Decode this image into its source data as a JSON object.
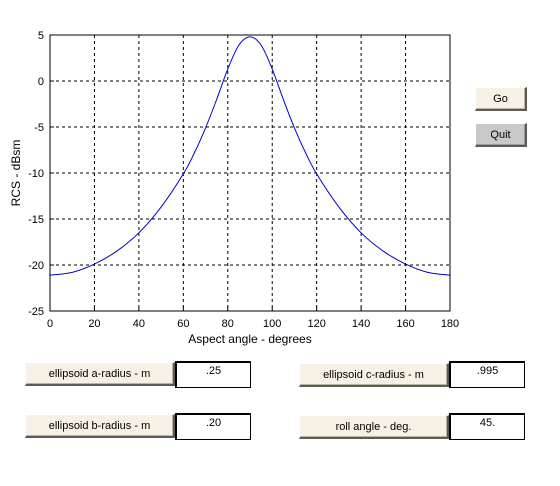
{
  "buttons": {
    "go": "Go",
    "quit": "Quit"
  },
  "fields": [
    {
      "label": "ellipsoid a-radius - m",
      "value": ".25"
    },
    {
      "label": "ellipsoid b-radius - m",
      "value": ".20"
    },
    {
      "label": "ellipsoid c-radius - m",
      "value": ".995"
    },
    {
      "label": "roll angle - deg.",
      "value": "45."
    }
  ],
  "chart_data": {
    "type": "line",
    "xlabel": "Aspect angle - degrees",
    "ylabel": "RCS - dBsm",
    "xlim": [
      0,
      180
    ],
    "ylim": [
      -25,
      5
    ],
    "xticks": [
      "0",
      "20",
      "40",
      "60",
      "80",
      "100",
      "120",
      "140",
      "160",
      "180"
    ],
    "yticks": [
      "5",
      "0",
      "-5",
      "-10",
      "-15",
      "-20",
      "-25"
    ],
    "grid": true,
    "line_color": "#0000cc",
    "series": [
      {
        "x": [
          0,
          10,
          20,
          30,
          40,
          50,
          60,
          65,
          70,
          75,
          80,
          85,
          90,
          95,
          100,
          105,
          110,
          115,
          120,
          130,
          140,
          150,
          160,
          170,
          180
        ],
        "y": [
          -21.1,
          -20.8,
          -19.9,
          -18.5,
          -16.5,
          -13.7,
          -10.1,
          -7.8,
          -5.1,
          -2.0,
          1.3,
          3.9,
          4.8,
          3.9,
          1.3,
          -2.0,
          -5.1,
          -7.8,
          -10.1,
          -13.7,
          -16.5,
          -18.5,
          -19.9,
          -20.8,
          -21.1
        ]
      }
    ]
  }
}
